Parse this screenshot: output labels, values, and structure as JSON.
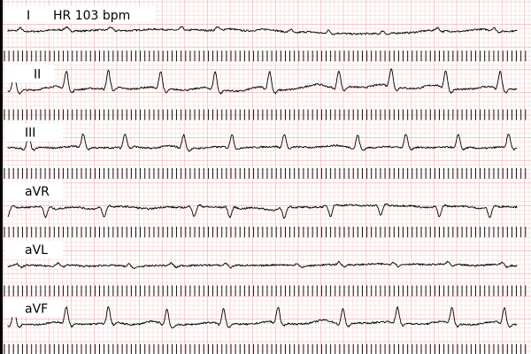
{
  "chart_data": {
    "type": "line",
    "title": "",
    "heart_rate_label": "HR 103 bpm",
    "heart_rate_bpm": 103,
    "grid": true,
    "colors": {
      "grid_minor": "#f7d7d7",
      "grid_major": "#f0a8a8",
      "trace": "#000000",
      "label_bg": "#ffffff"
    },
    "x_units": "s",
    "xlim": [
      0,
      2.5
    ],
    "series": [
      {
        "name": "I",
        "beats": [
          0.08,
          0.3,
          0.51,
          0.85,
          1.02,
          1.37,
          1.55,
          1.81,
          2.07,
          2.34
        ],
        "morph": [
          0.05,
          0.35,
          -0.12,
          0.15
        ],
        "wander": [
          [
            0.9,
            0.2,
            0.9
          ],
          [
            1.65,
            0.18,
            -2.8
          ],
          [
            1.8,
            0.15,
            -1.5
          ]
        ]
      },
      {
        "name": "II",
        "beats": [
          0.05,
          0.3,
          0.5,
          0.75,
          1.01,
          1.27,
          1.6,
          1.85,
          2.11,
          2.37
        ],
        "morph": [
          0.1,
          2.1,
          -0.5,
          0.4
        ],
        "wander": [
          [
            1.2,
            0.25,
            -1.5
          ],
          [
            1.6,
            0.2,
            2.8
          ],
          [
            1.95,
            0.15,
            1.0
          ]
        ]
      },
      {
        "name": "III",
        "beats": [
          0.12,
          0.38,
          0.58,
          0.86,
          1.09,
          1.34,
          1.69,
          1.92,
          2.17,
          2.41
        ],
        "morph": [
          0.05,
          1.6,
          -0.3,
          0.2
        ],
        "wander": [
          [
            0.4,
            0.3,
            0.5
          ],
          [
            1.55,
            0.3,
            1.0
          ]
        ]
      },
      {
        "name": "aVR",
        "beats": [
          0.02,
          0.2,
          0.48,
          0.91,
          1.08,
          1.34,
          1.56,
          1.8,
          2.08,
          2.32
        ],
        "morph": [
          -0.05,
          -1.2,
          0.2,
          -0.2
        ],
        "wander": [
          [
            1.35,
            0.12,
            -1.6
          ],
          [
            1.68,
            0.2,
            2.4
          ],
          [
            2.1,
            0.25,
            0.5
          ]
        ]
      },
      {
        "name": "aVL",
        "beats": [
          0.06,
          0.26,
          0.6,
          0.8,
          1.06,
          1.4,
          1.6,
          1.86,
          2.12,
          2.38
        ],
        "morph": [
          0.0,
          0.3,
          -0.25,
          0.1
        ],
        "wander": [
          [
            0.55,
            0.2,
            -0.6
          ],
          [
            1.9,
            0.25,
            1.2
          ]
        ]
      },
      {
        "name": "aVF",
        "beats": [
          0.05,
          0.3,
          0.5,
          0.78,
          1.05,
          1.31,
          1.62,
          1.88,
          2.14,
          2.39
        ],
        "morph": [
          0.08,
          1.9,
          -0.4,
          0.3
        ],
        "wander": [
          [
            0.95,
            0.2,
            -0.6
          ],
          [
            1.6,
            0.3,
            1.0
          ]
        ]
      }
    ]
  }
}
